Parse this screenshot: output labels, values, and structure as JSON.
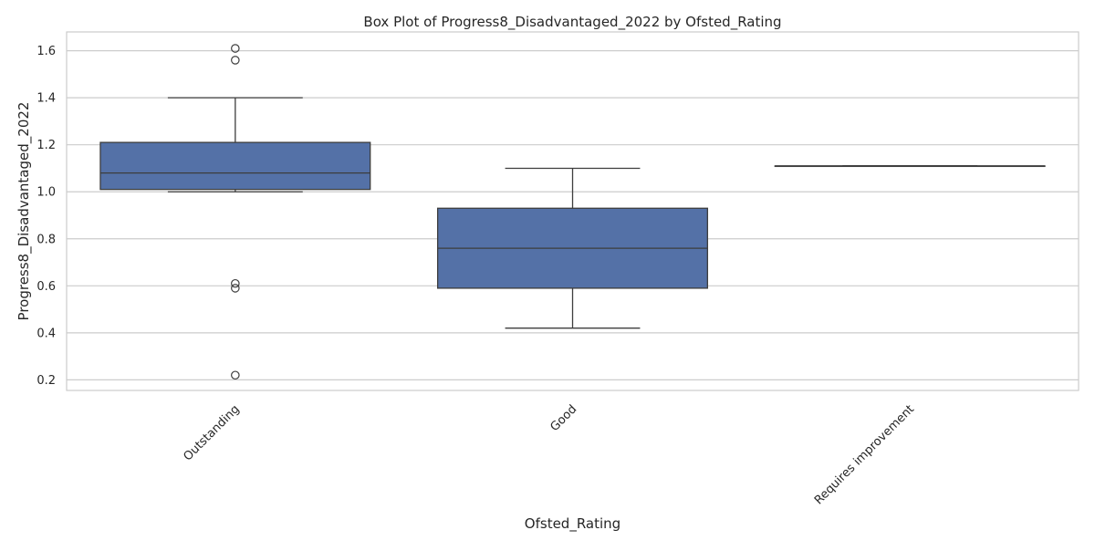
{
  "chart_data": {
    "type": "box",
    "title": "Box Plot of Progress8_Disadvantaged_2022 by Ofsted_Rating",
    "xlabel": "Ofsted_Rating",
    "ylabel": "Progress8_Disadvantaged_2022",
    "categories": [
      "Outstanding",
      "Good",
      "Requires improvement"
    ],
    "ylim": [
      0.155,
      1.68
    ],
    "yticks": [
      0.2,
      0.4,
      0.6,
      0.8,
      1.0,
      1.2,
      1.4,
      1.6
    ],
    "ytick_labels": [
      "0.2",
      "0.4",
      "0.6",
      "0.8",
      "1.0",
      "1.2",
      "1.4",
      "1.6"
    ],
    "grid": "y",
    "box_color": "#5471a7",
    "boxes": [
      {
        "category": "Outstanding",
        "whisker_low": 1.0,
        "q1": 1.01,
        "median": 1.08,
        "q3": 1.21,
        "whisker_high": 1.4,
        "outliers": [
          1.61,
          1.56,
          0.61,
          0.59,
          0.22
        ]
      },
      {
        "category": "Good",
        "whisker_low": 0.42,
        "q1": 0.59,
        "median": 0.76,
        "q3": 0.93,
        "whisker_high": 1.1,
        "outliers": []
      },
      {
        "category": "Requires improvement",
        "whisker_low": 1.11,
        "q1": 1.11,
        "median": 1.11,
        "q3": 1.11,
        "whisker_high": 1.11,
        "outliers": []
      }
    ]
  }
}
